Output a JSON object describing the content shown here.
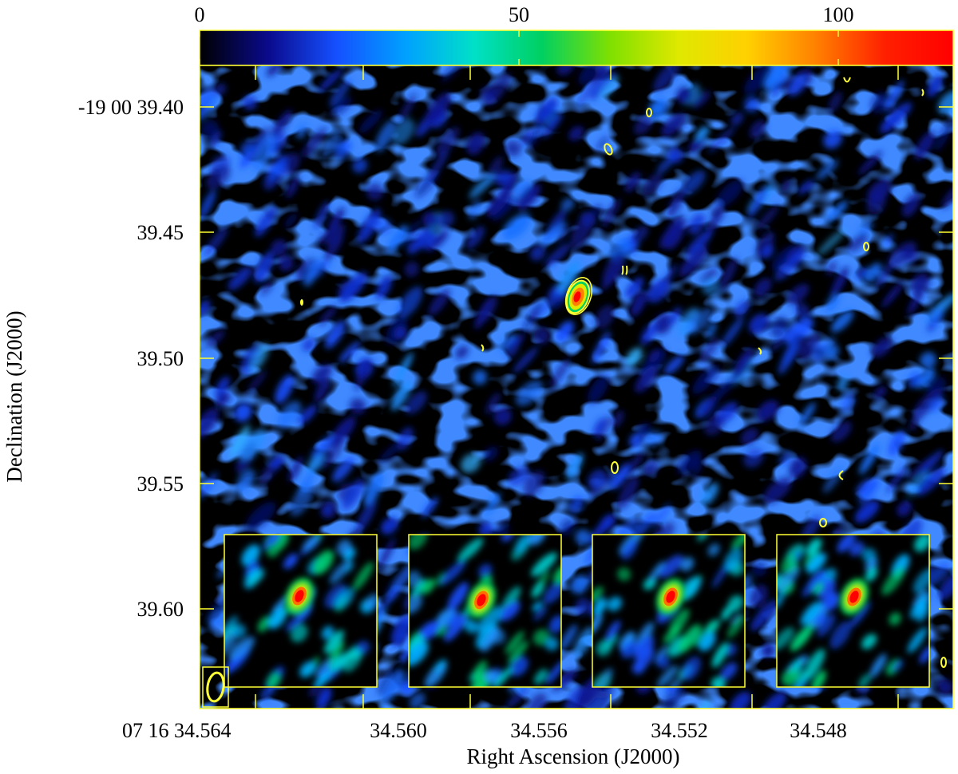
{
  "figure": {
    "colorbar": {
      "tick_labels": [
        "0",
        "50",
        "100"
      ],
      "tick_values": [
        0,
        50,
        100
      ],
      "range": [
        0,
        118
      ],
      "colormap": [
        "#000000",
        "#0a0a8c",
        "#1550ff",
        "#00a0ff",
        "#00e0c8",
        "#00d060",
        "#80e000",
        "#e0e800",
        "#ffd000",
        "#ff8000",
        "#ff2000",
        "#ff0000"
      ]
    },
    "axes": {
      "xlabel": "Right Ascension (J2000)",
      "ylabel": "Declination (J2000)",
      "x_tick_labels": [
        "07 16 34.564",
        "34.560",
        "34.556",
        "34.552",
        "34.548"
      ],
      "y_tick_labels": [
        "-19 00 39.40",
        "39.45",
        "39.50",
        "39.55",
        "39.60"
      ],
      "frame_color": "#ffff33",
      "contour_color": "#ffff33"
    },
    "insets_count": 4,
    "beam_icon": "beam-ellipse-icon"
  }
}
